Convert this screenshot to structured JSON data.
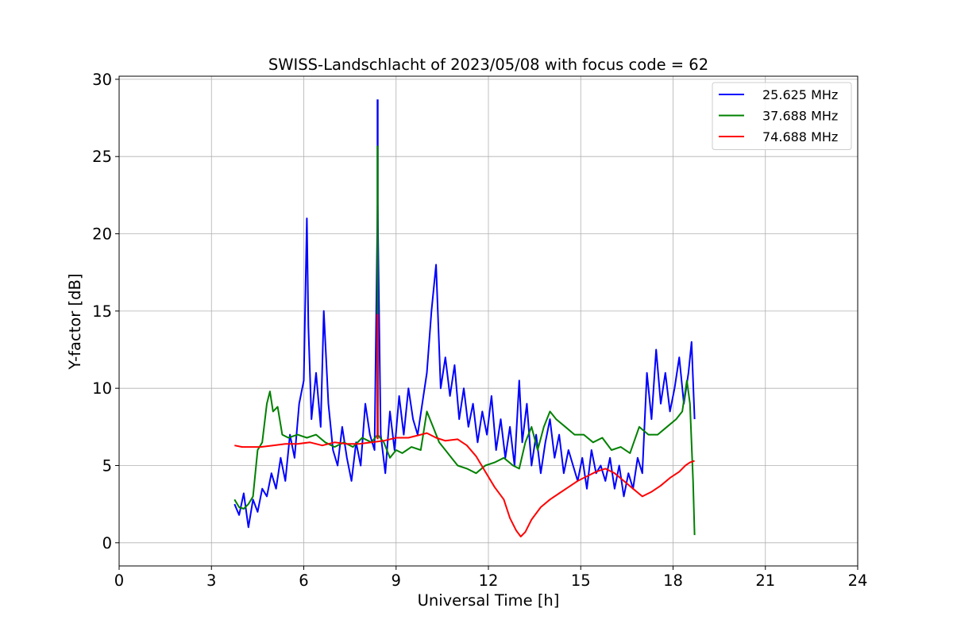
{
  "chart_data": {
    "type": "line",
    "title": "SWISS-Landschlacht of 2023/05/08 with focus code = 62",
    "xlabel": "Universal Time [h]",
    "ylabel": "Y-factor [dB]",
    "xlim": [
      0,
      24
    ],
    "ylim": [
      -1.5,
      30.2
    ],
    "xticks": [
      0,
      3,
      6,
      9,
      12,
      15,
      18,
      21,
      24
    ],
    "yticks": [
      0,
      5,
      10,
      15,
      20,
      25,
      30
    ],
    "grid": true,
    "legend_position": "top-right",
    "series": [
      {
        "name": "25.625 MHz",
        "color": "#0000ff",
        "x": [
          3.75,
          3.9,
          4.05,
          4.2,
          4.35,
          4.5,
          4.65,
          4.8,
          4.95,
          5.1,
          5.25,
          5.4,
          5.55,
          5.7,
          5.85,
          6.0,
          6.1,
          6.15,
          6.25,
          6.4,
          6.55,
          6.65,
          6.8,
          6.95,
          7.1,
          7.25,
          7.4,
          7.55,
          7.7,
          7.85,
          8.0,
          8.15,
          8.3,
          8.4,
          8.5,
          8.65,
          8.8,
          8.95,
          9.1,
          9.25,
          9.4,
          9.55,
          9.7,
          9.85,
          10.0,
          10.15,
          10.3,
          10.45,
          10.6,
          10.75,
          10.9,
          11.05,
          11.2,
          11.35,
          11.5,
          11.65,
          11.8,
          11.95,
          12.1,
          12.25,
          12.4,
          12.55,
          12.7,
          12.85,
          13.0,
          13.1,
          13.25,
          13.4,
          13.55,
          13.7,
          13.85,
          14.0,
          14.15,
          14.3,
          14.45,
          14.6,
          14.75,
          14.9,
          15.05,
          15.2,
          15.35,
          15.5,
          15.65,
          15.8,
          15.95,
          16.1,
          16.25,
          16.4,
          16.55,
          16.7,
          16.85,
          17.0,
          17.15,
          17.3,
          17.45,
          17.6,
          17.75,
          17.9,
          18.05,
          18.2,
          18.35,
          18.5,
          18.6,
          18.7
        ],
        "y": [
          2.5,
          1.8,
          3.2,
          1.0,
          2.8,
          2.0,
          3.5,
          3.0,
          4.5,
          3.5,
          5.5,
          4.0,
          7.0,
          5.5,
          9.0,
          10.5,
          21.0,
          14.0,
          8.0,
          11.0,
          7.5,
          15.0,
          9.0,
          6.0,
          5.0,
          7.5,
          5.5,
          4.0,
          6.5,
          5.0,
          9.0,
          7.0,
          6.0,
          22.0,
          7.0,
          4.5,
          8.5,
          6.0,
          9.5,
          7.0,
          10.0,
          8.0,
          7.0,
          9.0,
          11.0,
          15.0,
          18.0,
          10.0,
          12.0,
          9.5,
          11.5,
          8.0,
          10.0,
          7.5,
          9.0,
          6.5,
          8.5,
          7.0,
          9.5,
          6.0,
          8.0,
          5.5,
          7.5,
          5.0,
          10.5,
          6.5,
          9.0,
          5.0,
          7.0,
          4.5,
          6.5,
          8.0,
          5.5,
          7.0,
          4.5,
          6.0,
          5.0,
          4.0,
          5.5,
          3.5,
          6.0,
          4.5,
          5.0,
          4.0,
          5.5,
          3.5,
          5.0,
          3.0,
          4.5,
          3.5,
          5.5,
          4.5,
          11.0,
          8.0,
          12.5,
          9.0,
          11.0,
          8.5,
          10.0,
          12.0,
          9.0,
          11.0,
          13.0,
          8.0
        ]
      },
      {
        "name": "37.688 MHz",
        "color": "#008000",
        "x": [
          3.75,
          3.9,
          4.05,
          4.2,
          4.35,
          4.5,
          4.65,
          4.8,
          4.9,
          5.0,
          5.15,
          5.3,
          5.5,
          5.8,
          6.1,
          6.4,
          6.7,
          7.0,
          7.3,
          7.6,
          7.9,
          8.2,
          8.4,
          8.6,
          8.8,
          9.0,
          9.2,
          9.5,
          9.8,
          10.0,
          10.2,
          10.4,
          10.6,
          10.8,
          11.0,
          11.3,
          11.6,
          11.9,
          12.2,
          12.5,
          12.8,
          13.0,
          13.2,
          13.4,
          13.6,
          13.8,
          14.0,
          14.2,
          14.5,
          14.8,
          15.1,
          15.4,
          15.7,
          16.0,
          16.3,
          16.6,
          16.9,
          17.2,
          17.5,
          17.8,
          18.1,
          18.3,
          18.45,
          18.55,
          18.65,
          18.7
        ],
        "y": [
          2.8,
          2.3,
          2.2,
          2.5,
          3.0,
          6.0,
          6.5,
          9.0,
          9.8,
          8.5,
          8.8,
          7.0,
          6.8,
          7.0,
          6.8,
          7.0,
          6.5,
          6.2,
          6.5,
          6.2,
          6.8,
          6.5,
          7.0,
          6.5,
          5.5,
          6.0,
          5.8,
          6.2,
          6.0,
          8.5,
          7.5,
          6.5,
          6.0,
          5.5,
          5.0,
          4.8,
          4.5,
          5.0,
          5.2,
          5.5,
          5.0,
          4.8,
          6.5,
          7.5,
          6.0,
          7.5,
          8.5,
          8.0,
          7.5,
          7.0,
          7.0,
          6.5,
          6.8,
          6.0,
          6.2,
          5.8,
          7.5,
          7.0,
          7.0,
          7.5,
          8.0,
          8.5,
          10.5,
          9.0,
          4.0,
          0.5
        ]
      },
      {
        "name": "74.688 MHz",
        "color": "#ff0000",
        "x": [
          3.75,
          4.0,
          4.3,
          4.6,
          5.0,
          5.4,
          5.8,
          6.2,
          6.6,
          7.0,
          7.4,
          7.8,
          8.2,
          8.6,
          9.0,
          9.4,
          9.8,
          10.0,
          10.3,
          10.6,
          11.0,
          11.3,
          11.6,
          11.9,
          12.2,
          12.5,
          12.7,
          12.9,
          13.05,
          13.2,
          13.4,
          13.7,
          14.0,
          14.3,
          14.6,
          14.9,
          15.2,
          15.5,
          15.8,
          16.1,
          16.4,
          16.7,
          17.0,
          17.3,
          17.6,
          17.9,
          18.2,
          18.4,
          18.55,
          18.7
        ],
        "y": [
          6.3,
          6.2,
          6.2,
          6.2,
          6.3,
          6.4,
          6.4,
          6.5,
          6.3,
          6.5,
          6.4,
          6.4,
          6.5,
          6.6,
          6.8,
          6.8,
          7.0,
          7.1,
          6.8,
          6.6,
          6.7,
          6.3,
          5.6,
          4.6,
          3.6,
          2.8,
          1.6,
          0.8,
          0.4,
          0.7,
          1.5,
          2.3,
          2.8,
          3.2,
          3.6,
          4.0,
          4.3,
          4.6,
          4.8,
          4.5,
          4.0,
          3.5,
          3.0,
          3.3,
          3.7,
          4.2,
          4.6,
          5.0,
          5.2,
          5.3
        ]
      }
    ],
    "annotations": [
      {
        "type": "spike",
        "x": 8.4,
        "series": "25.625 MHz",
        "y_top": 28.7,
        "y_base": 7.0
      },
      {
        "type": "spike",
        "x": 8.4,
        "series": "37.688 MHz",
        "y_top": 25.7,
        "y_base": 7.0
      },
      {
        "type": "spike",
        "x": 8.4,
        "series": "74.688 MHz",
        "y_top": 14.8,
        "y_base": 6.7
      }
    ]
  }
}
